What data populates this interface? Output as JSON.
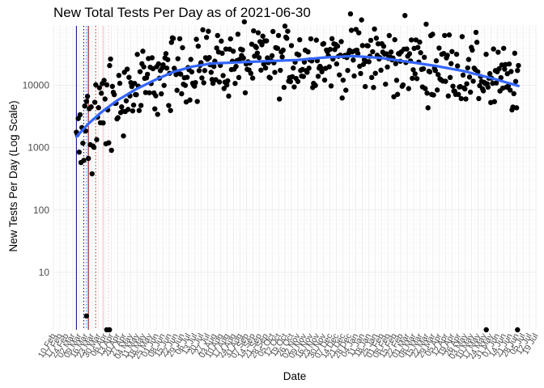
{
  "chart_data": {
    "type": "scatter",
    "title": "New Total Tests Per Day as of 2021-06-30",
    "xlabel": "Date",
    "ylabel": "New Tests Per Day (Log Scale)",
    "y_scale": "log10",
    "ylim": [
      1.2,
      90000
    ],
    "y_ticks": [
      10,
      100,
      1000,
      10000
    ],
    "y_tick_labels": [
      "10",
      "100",
      "1000",
      "10000"
    ],
    "x_range": [
      "2020-02-10",
      "2021-07-19"
    ],
    "x_tick_labels": [
      "10 Feb",
      "17 Feb",
      "24 Feb",
      "02 Mar",
      "09 Mar",
      "16 Mar",
      "23 Mar",
      "30 Mar",
      "06 Apr",
      "13 Apr",
      "20 Apr",
      "27 Apr",
      "04 May",
      "11 May",
      "18 May",
      "25 May",
      "01 Jun",
      "08 Jun",
      "15 Jun",
      "22 Jun",
      "29 Jun",
      "06 Jul",
      "13 Jul",
      "20 Jul",
      "27 Jul",
      "03 Aug",
      "10 Aug",
      "17 Aug",
      "24 Aug",
      "31 Aug",
      "07 Sep",
      "14 Sep",
      "21 Sep",
      "28 Sep",
      "05 Oct",
      "12 Oct",
      "19 Oct",
      "26 Oct",
      "02 Nov",
      "09 Nov",
      "16 Nov",
      "23 Nov",
      "30 Nov",
      "07 Dec",
      "14 Dec",
      "21 Dec",
      "28 Dec",
      "04 Jan",
      "11 Jan",
      "18 Jan",
      "25 Jan",
      "01 Feb",
      "08 Feb",
      "15 Feb",
      "22 Feb",
      "01 Mar",
      "08 Mar",
      "15 Mar",
      "22 Mar",
      "29 Mar",
      "05 Apr",
      "12 Apr",
      "19 Apr",
      "26 Apr",
      "03 May",
      "10 May",
      "17 May",
      "24 May",
      "31 May",
      "07 Jun",
      "14 Jun",
      "21 Jun",
      "28 Jun",
      "05 Jul",
      "12 Jul",
      "19 Jul"
    ],
    "vertical_lines": [
      {
        "date": "2020-03-06",
        "color": "#00008b",
        "style": "solid"
      },
      {
        "date": "2020-03-14",
        "color": "#00008b",
        "style": "dotted"
      },
      {
        "date": "2020-03-17",
        "color": "#1e90ff",
        "style": "dotted"
      },
      {
        "date": "2020-03-19",
        "color": "#8b0000",
        "style": "solid"
      },
      {
        "date": "2020-03-27",
        "color": "#ff0000",
        "style": "dotted"
      },
      {
        "date": "2020-04-04",
        "color": "#ffb6c1",
        "style": "solid"
      },
      {
        "date": "2020-04-10",
        "color": "#ffb6c1",
        "style": "dotted"
      }
    ],
    "outliers": [
      {
        "date": "2020-03-17",
        "value": 2
      },
      {
        "date": "2020-04-08",
        "value": 1.2
      },
      {
        "date": "2020-04-11",
        "value": 1.2
      },
      {
        "date": "2021-05-26",
        "value": 1.2
      },
      {
        "date": "2021-06-29",
        "value": 1.2
      }
    ],
    "trend": {
      "name": "loess",
      "color": "#3366ff",
      "x": [
        "2020-03-06",
        "2020-03-20",
        "2020-04-03",
        "2020-04-20",
        "2020-05-10",
        "2020-06-01",
        "2020-06-20",
        "2020-07-10",
        "2020-08-01",
        "2020-09-01",
        "2020-10-01",
        "2020-11-01",
        "2020-12-01",
        "2021-01-01",
        "2021-02-01",
        "2021-03-01",
        "2021-04-01",
        "2021-05-01",
        "2021-06-01",
        "2021-06-30"
      ],
      "y": [
        1500,
        2500,
        3800,
        5800,
        8700,
        12500,
        16500,
        20000,
        22500,
        23500,
        24500,
        25500,
        28000,
        29500,
        27500,
        24000,
        20500,
        17000,
        13000,
        9800
      ]
    },
    "scatter_relative_spread": 0.28,
    "scatter_count": 480,
    "point_color": "#000000",
    "grid": true
  }
}
